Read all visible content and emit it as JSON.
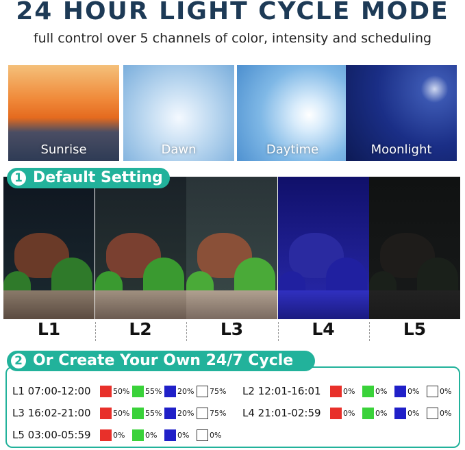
{
  "header": {
    "title": "24 HOUR LIGHT CYCLE MODE",
    "subtitle": "full control over 5 channels of color, intensity and scheduling"
  },
  "scenes": [
    "Sunrise",
    "Dawn",
    "Daytime",
    "Moonlight"
  ],
  "default_section": {
    "number": "1",
    "title": "Default Setting",
    "levels": [
      "L1",
      "L2",
      "L3",
      "L4",
      "L5"
    ]
  },
  "custom_section": {
    "number": "2",
    "title": "Or Create Your Own 24/7 Cycle",
    "schedule": [
      {
        "label": "L1 07:00-12:00",
        "levels": [
          "50%",
          "55%",
          "20%",
          "75%"
        ]
      },
      {
        "label": "L2 12:01-16:01",
        "levels": [
          "0%",
          "0%",
          "0%",
          "0%"
        ]
      },
      {
        "label": "L3 16:02-21:00",
        "levels": [
          "50%",
          "55%",
          "20%",
          "75%"
        ]
      },
      {
        "label": "L4 21:01-02:59",
        "levels": [
          "0%",
          "0%",
          "0%",
          "0%"
        ]
      },
      {
        "label": "L5 03:00-05:59",
        "levels": [
          "0%",
          "0%",
          "0%",
          "0%"
        ]
      }
    ]
  }
}
